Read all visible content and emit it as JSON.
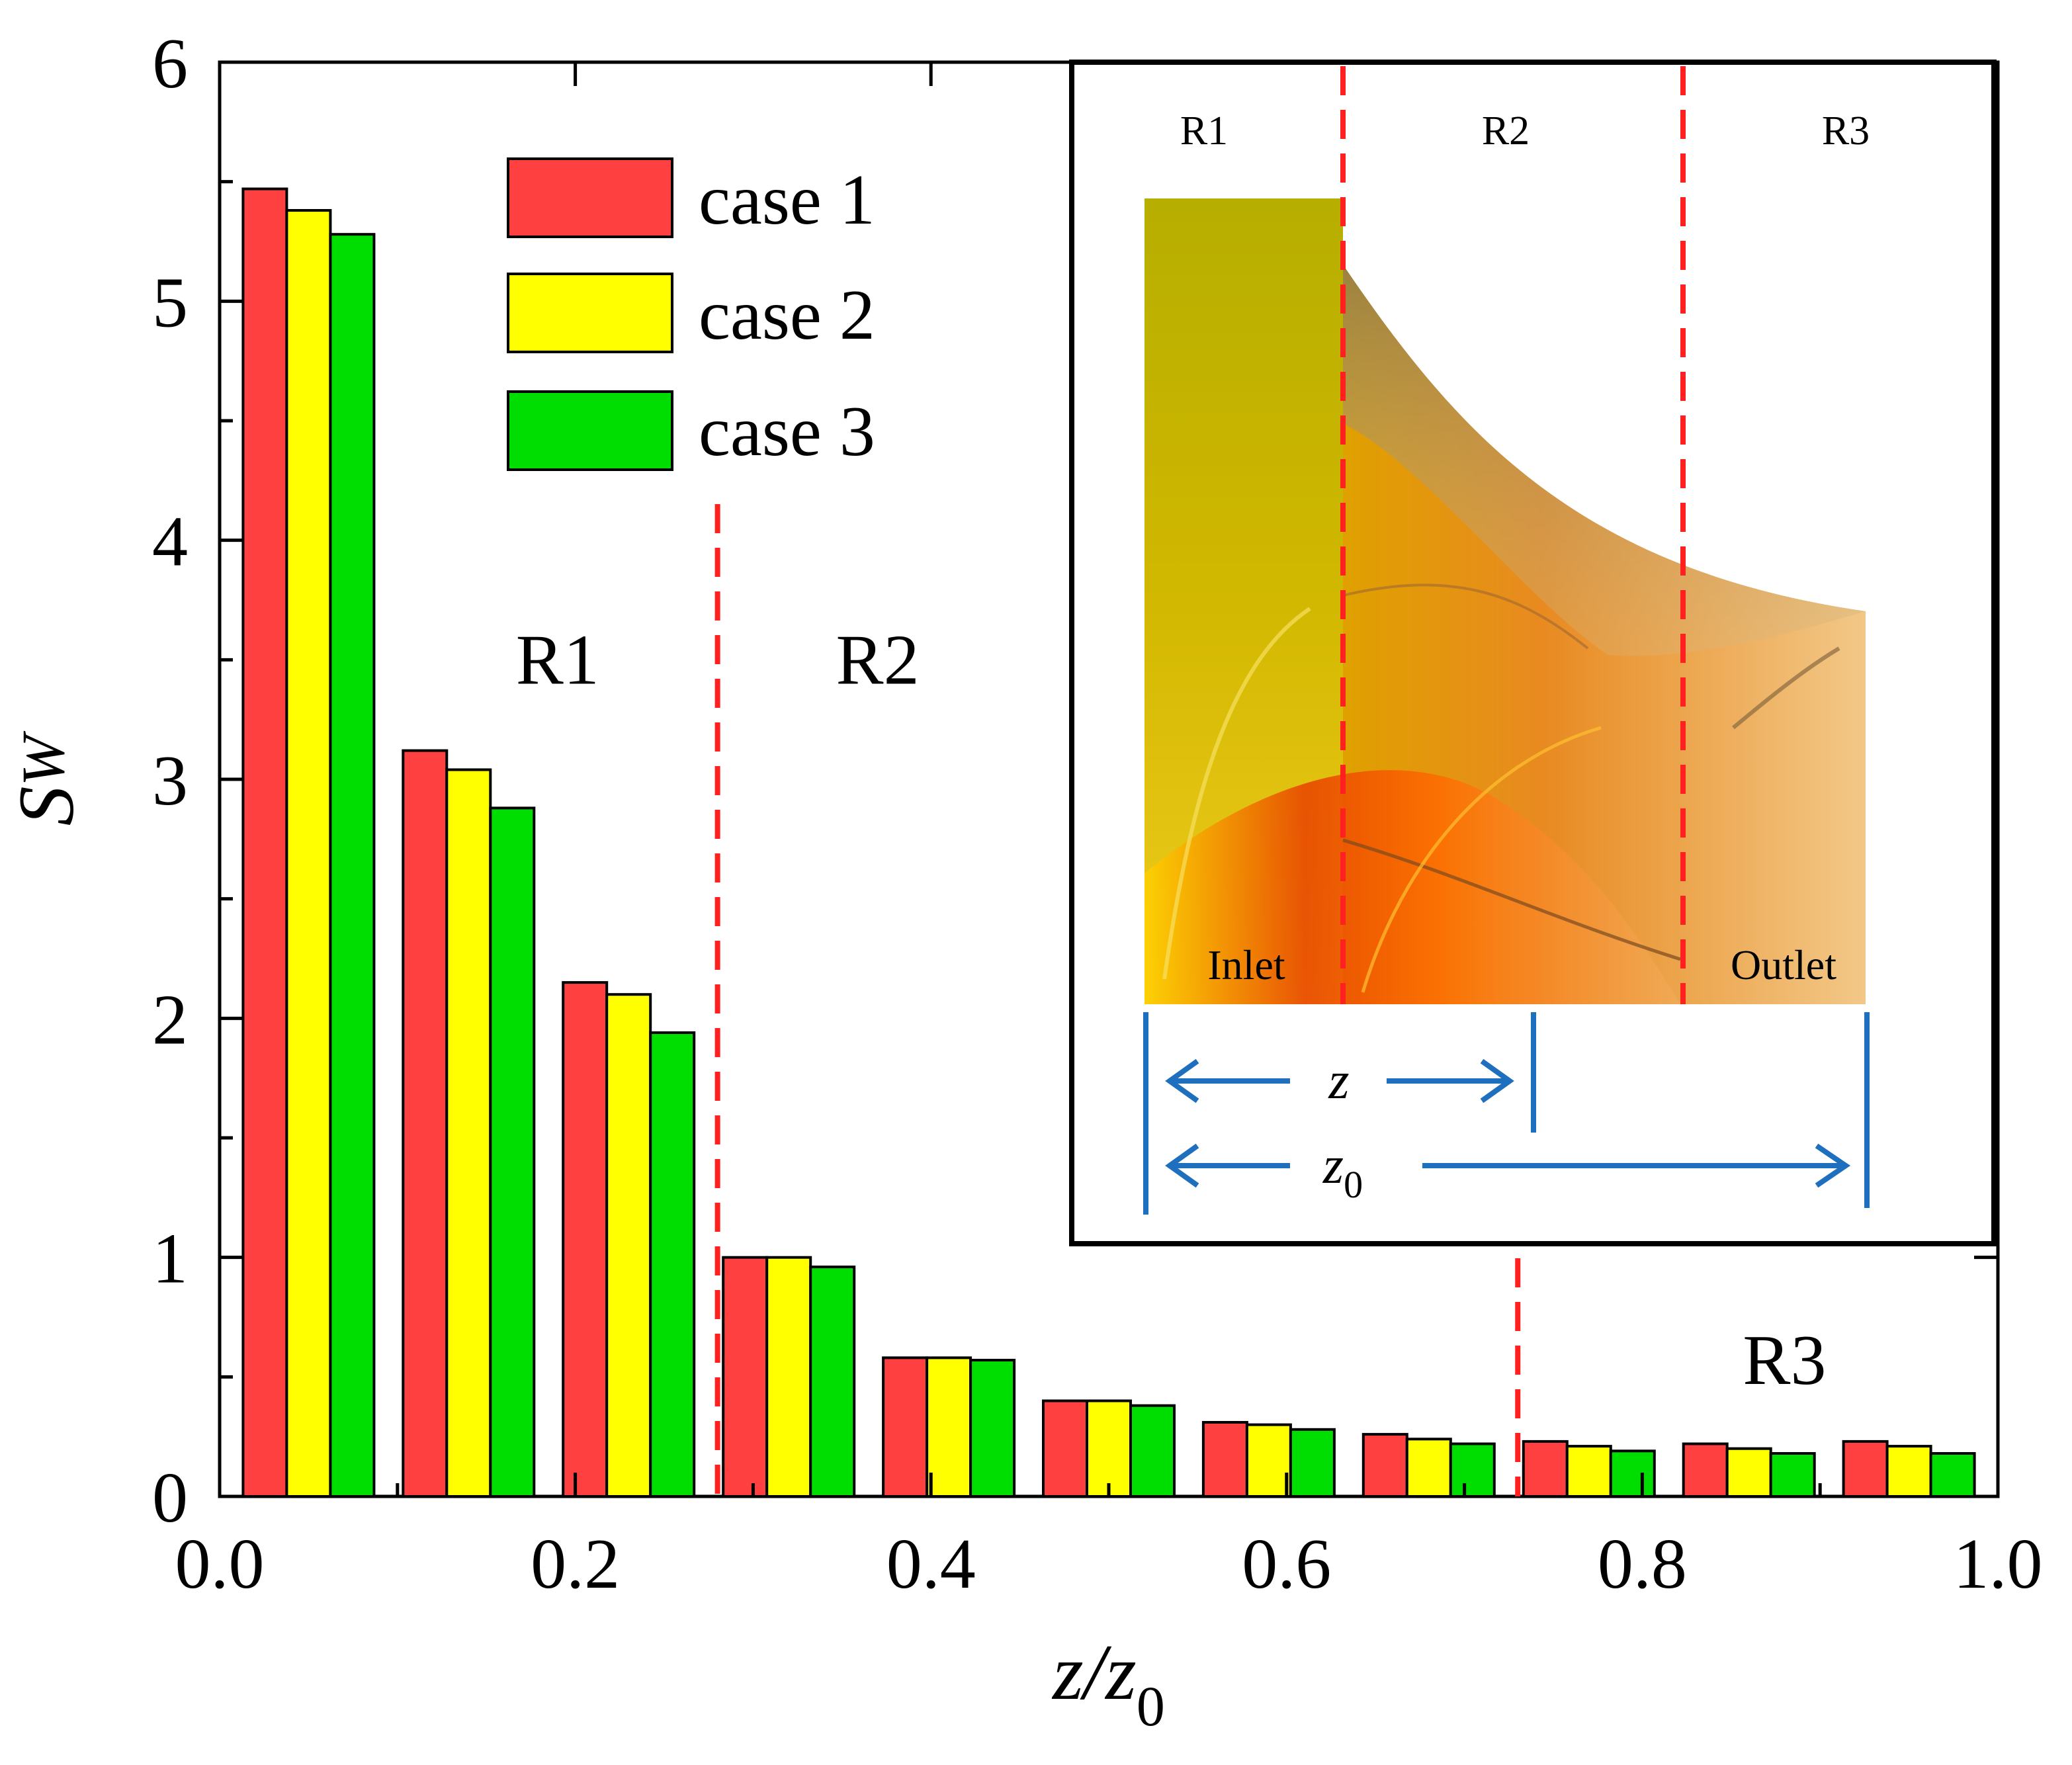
{
  "chart_data": {
    "type": "bar",
    "xlabel_main": "z/z",
    "xlabel_sub": "0",
    "ylabel_main": "S",
    "ylabel_sub": "W",
    "xlim": [
      0.0,
      1.0
    ],
    "ylim": [
      0,
      6
    ],
    "xticks": [
      "0.0",
      "0.2",
      "0.4",
      "0.6",
      "0.8",
      "1.0"
    ],
    "yticks": [
      "0",
      "1",
      "2",
      "3",
      "4",
      "5",
      "6"
    ],
    "x": [
      0.05,
      0.14,
      0.23,
      0.32,
      0.41,
      0.5,
      0.59,
      0.68,
      0.77,
      0.86,
      0.95
    ],
    "series": [
      {
        "name": "case 1",
        "color": "#ff4040",
        "values": [
          5.47,
          3.12,
          2.15,
          1.0,
          0.58,
          0.4,
          0.31,
          0.26,
          0.23,
          0.22,
          0.23
        ]
      },
      {
        "name": "case 2",
        "color": "#ffff00",
        "values": [
          5.38,
          3.04,
          2.1,
          1.0,
          0.58,
          0.4,
          0.3,
          0.24,
          0.21,
          0.2,
          0.21
        ]
      },
      {
        "name": "case 3",
        "color": "#00dd00",
        "values": [
          5.28,
          2.88,
          1.94,
          0.96,
          0.57,
          0.38,
          0.28,
          0.22,
          0.19,
          0.18,
          0.18
        ]
      }
    ],
    "region_boundaries": [
      0.28,
      0.73
    ],
    "region_labels": [
      {
        "text": "R1",
        "x": 0.19,
        "y": 3.5
      },
      {
        "text": "R2",
        "x": 0.37,
        "y": 3.5
      },
      {
        "text": "R3",
        "x": 0.88,
        "y": 0.57
      }
    ],
    "legend_position": "top-center",
    "grid": false
  },
  "inset": {
    "region_labels": [
      "R1",
      "R2",
      "R3"
    ],
    "inlet_label": "Inlet",
    "outlet_label": "Outlet",
    "z_label": "z",
    "z0_main": "z",
    "z0_sub": "0"
  }
}
